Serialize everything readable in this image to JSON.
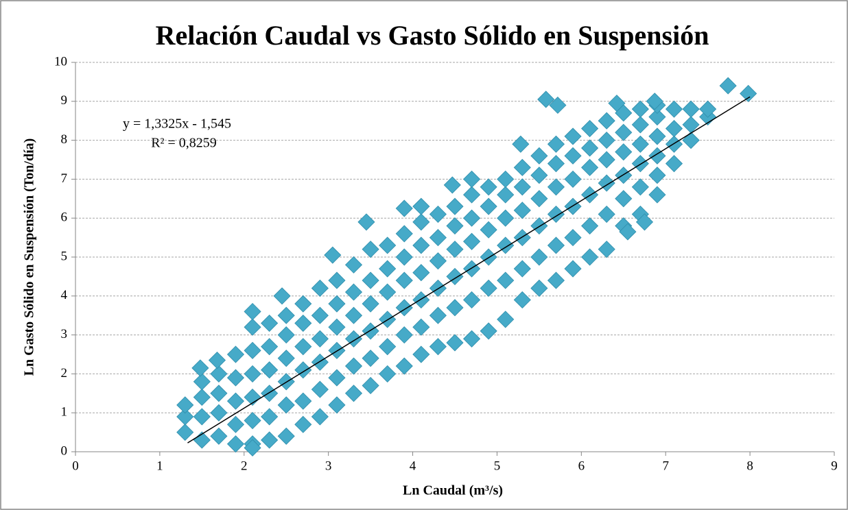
{
  "chart_data": {
    "type": "scatter",
    "title": "Relación Caudal vs Gasto Sólido en Suspensión",
    "x_label": "Ln Caudal (m³/s)",
    "y_label": "Ln Gasto Sólido en Suspensión (Ton/día)",
    "annotations": [
      "y = 1,3325x - 1,545",
      "R² = 0,8259"
    ],
    "xlim": [
      0,
      9
    ],
    "xticks": [
      0,
      1,
      2,
      3,
      4,
      5,
      6,
      7,
      8,
      9
    ],
    "ylim": [
      0,
      10
    ],
    "yticks": [
      0,
      1,
      2,
      3,
      4,
      5,
      6,
      7,
      8,
      9,
      10
    ],
    "grid": true,
    "series": [
      {
        "color": "#46aac8",
        "x": [
          1.3,
          1.3,
          1.3,
          1.5,
          1.5,
          1.5,
          1.5,
          1.7,
          1.7,
          1.7,
          1.7,
          1.9,
          1.9,
          1.9,
          1.9,
          1.9,
          2.1,
          2.1,
          2.1,
          2.1,
          2.1,
          2.1,
          2.3,
          2.3,
          2.3,
          2.3,
          2.3,
          2.3,
          2.5,
          2.5,
          2.5,
          2.5,
          2.5,
          2.5,
          2.7,
          2.7,
          2.7,
          2.7,
          2.7,
          2.7,
          2.9,
          2.9,
          2.9,
          2.9,
          2.9,
          2.9,
          3.1,
          3.1,
          3.1,
          3.1,
          3.1,
          3.1,
          3.3,
          3.3,
          3.3,
          3.3,
          3.3,
          3.3,
          3.5,
          3.5,
          3.5,
          3.5,
          3.5,
          3.5,
          3.7,
          3.7,
          3.7,
          3.7,
          3.7,
          3.7,
          3.9,
          3.9,
          3.9,
          3.9,
          3.9,
          3.9,
          4.1,
          4.1,
          4.1,
          4.1,
          4.1,
          4.1,
          4.3,
          4.3,
          4.3,
          4.3,
          4.3,
          4.3,
          4.5,
          4.5,
          4.5,
          4.5,
          4.5,
          4.5,
          4.7,
          4.7,
          4.7,
          4.7,
          4.7,
          4.7,
          4.9,
          4.9,
          4.9,
          4.9,
          4.9,
          4.9,
          5.1,
          5.1,
          5.1,
          5.1,
          5.1,
          5.1,
          5.3,
          5.3,
          5.3,
          5.3,
          5.3,
          5.3,
          5.5,
          5.5,
          5.5,
          5.5,
          5.5,
          5.5,
          5.7,
          5.7,
          5.7,
          5.7,
          5.7,
          5.7,
          5.9,
          5.9,
          5.9,
          5.9,
          5.9,
          5.9,
          6.1,
          6.1,
          6.1,
          6.1,
          6.1,
          6.1,
          6.3,
          6.3,
          6.3,
          6.3,
          6.3,
          6.3,
          6.5,
          6.5,
          6.5,
          6.5,
          6.5,
          6.5,
          6.7,
          6.7,
          6.7,
          6.7,
          6.7,
          6.7,
          6.9,
          6.9,
          6.9,
          6.9,
          6.9,
          6.9,
          7.1,
          7.1,
          7.1,
          7.1,
          7.3,
          7.3,
          7.3,
          7.5,
          7.5,
          5.58,
          5.72,
          7.74,
          7.98,
          6.87,
          6.42,
          2.1,
          2.45,
          3.45,
          3.05,
          4.1,
          4.7,
          5.28,
          1.48,
          1.68,
          6.75,
          6.55,
          7.3,
          2.1,
          3.9,
          4.47
        ],
        "values": [
          0.5,
          0.9,
          1.2,
          0.3,
          0.9,
          1.4,
          1.8,
          0.4,
          1.0,
          1.5,
          2.0,
          0.2,
          0.7,
          1.3,
          1.9,
          2.5,
          0.2,
          0.8,
          1.4,
          2.0,
          2.6,
          3.2,
          0.3,
          0.9,
          1.5,
          2.1,
          2.7,
          3.3,
          0.4,
          1.2,
          1.8,
          2.4,
          3.0,
          3.5,
          0.7,
          1.3,
          2.1,
          2.7,
          3.3,
          3.8,
          0.9,
          1.6,
          2.3,
          2.9,
          3.5,
          4.2,
          1.2,
          1.9,
          2.6,
          3.2,
          3.8,
          4.4,
          1.5,
          2.2,
          2.9,
          3.5,
          4.1,
          4.8,
          1.7,
          2.4,
          3.1,
          3.8,
          4.4,
          5.2,
          2.0,
          2.7,
          3.4,
          4.1,
          4.7,
          5.3,
          2.2,
          3.0,
          3.7,
          4.4,
          5.0,
          5.6,
          2.5,
          3.2,
          3.9,
          4.6,
          5.3,
          5.9,
          2.7,
          3.5,
          4.2,
          4.9,
          5.5,
          6.1,
          2.8,
          3.7,
          4.5,
          5.2,
          5.8,
          6.3,
          2.9,
          3.9,
          4.7,
          5.4,
          6.0,
          6.6,
          3.1,
          4.2,
          5.0,
          5.7,
          6.3,
          6.8,
          3.4,
          4.4,
          5.3,
          6.0,
          6.6,
          7.0,
          3.9,
          4.7,
          5.5,
          6.2,
          6.8,
          7.3,
          4.2,
          5.0,
          5.8,
          6.5,
          7.1,
          7.6,
          4.4,
          5.3,
          6.1,
          6.8,
          7.4,
          7.9,
          4.7,
          5.5,
          6.3,
          7.0,
          7.6,
          8.1,
          5.0,
          5.8,
          6.6,
          7.3,
          7.8,
          8.3,
          5.2,
          6.1,
          6.9,
          7.5,
          8.0,
          8.5,
          5.8,
          6.5,
          7.1,
          7.7,
          8.2,
          8.7,
          6.1,
          6.8,
          7.4,
          7.9,
          8.4,
          8.8,
          6.6,
          7.1,
          7.6,
          8.1,
          8.6,
          8.9,
          7.4,
          7.9,
          8.3,
          8.8,
          8.0,
          8.4,
          8.8,
          8.6,
          8.8,
          9.05,
          8.9,
          9.4,
          9.2,
          9.0,
          8.95,
          3.6,
          4.0,
          5.9,
          5.05,
          6.3,
          7.0,
          7.9,
          2.15,
          2.35,
          5.9,
          5.65,
          8.0,
          0.1,
          6.25,
          6.85
        ]
      }
    ],
    "trendline": {
      "color": "#000000",
      "x": [
        1.33,
        8.0
      ],
      "values": [
        0.227,
        9.115
      ]
    }
  }
}
